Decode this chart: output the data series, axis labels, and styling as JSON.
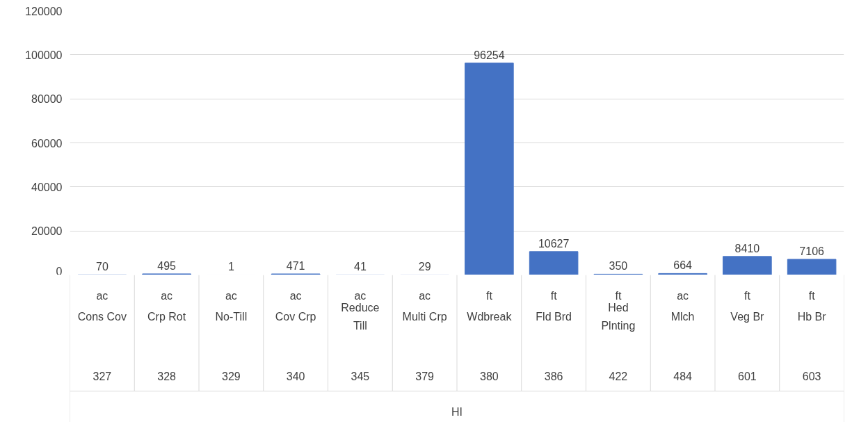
{
  "chart_data": {
    "type": "bar",
    "categories": [
      "Cons Cov",
      "Crp Rot",
      "No-Till",
      "Cov Crp",
      "Reduce Till",
      "Multi Crp",
      "Wdbreak",
      "Fld Brd",
      "Hed Plnting",
      "Mlch",
      "Veg Br",
      "Hb Br"
    ],
    "values": [
      70,
      495,
      1,
      471,
      41,
      29,
      96254,
      10627,
      350,
      664,
      8410,
      7106
    ],
    "color": "#4472c4",
    "ylim": [
      0,
      120000
    ],
    "yticks": [
      0,
      20000,
      40000,
      60000,
      80000,
      100000,
      120000
    ],
    "grid": "y",
    "data_labels": true,
    "annotations": [
      "ac",
      "327",
      "ac",
      "328",
      "ac",
      "329",
      "ac",
      "340",
      "ac",
      "345",
      "ac",
      "379",
      "ft",
      "380",
      "ft",
      "386",
      "ft",
      "422",
      "ac",
      "484",
      "ft",
      "601",
      "ft",
      "603",
      "HI"
    ]
  }
}
